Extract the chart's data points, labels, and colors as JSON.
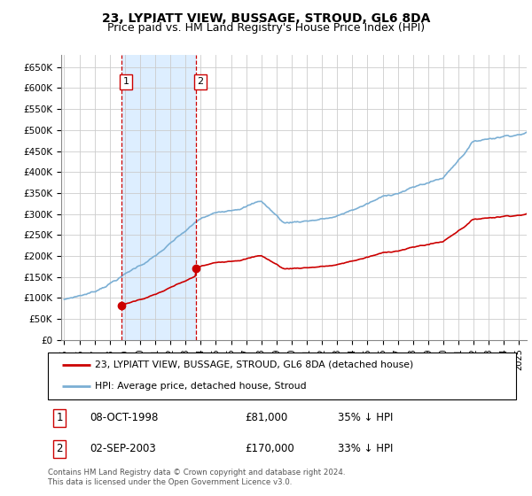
{
  "title": "23, LYPIATT VIEW, BUSSAGE, STROUD, GL6 8DA",
  "subtitle": "Price paid vs. HM Land Registry's House Price Index (HPI)",
  "title_fontsize": 10,
  "subtitle_fontsize": 9,
  "ylabel_ticks": [
    "£0",
    "£50K",
    "£100K",
    "£150K",
    "£200K",
    "£250K",
    "£300K",
    "£350K",
    "£400K",
    "£450K",
    "£500K",
    "£550K",
    "£600K",
    "£650K"
  ],
  "ytick_values": [
    0,
    50000,
    100000,
    150000,
    200000,
    250000,
    300000,
    350000,
    400000,
    450000,
    500000,
    550000,
    600000,
    650000
  ],
  "ylim": [
    0,
    680000
  ],
  "xlim_start": 1994.8,
  "xlim_end": 2025.5,
  "purchase1_date": 1998.77,
  "purchase1_price": 81000,
  "purchase1_label": "1",
  "purchase2_date": 2003.67,
  "purchase2_price": 170000,
  "purchase2_label": "2",
  "legend_line1": "23, LYPIATT VIEW, BUSSAGE, STROUD, GL6 8DA (detached house)",
  "legend_line2": "HPI: Average price, detached house, Stroud",
  "purchase1_col1": "08-OCT-1998",
  "purchase1_col2": "£81,000",
  "purchase1_col3": "35% ↓ HPI",
  "purchase2_col1": "02-SEP-2003",
  "purchase2_col2": "£170,000",
  "purchase2_col3": "33% ↓ HPI",
  "footer": "Contains HM Land Registry data © Crown copyright and database right 2024.\nThis data is licensed under the Open Government Licence v3.0.",
  "price_color": "#cc0000",
  "hpi_color": "#7bafd4",
  "shade_color": "#ddeeff",
  "grid_color": "#cccccc",
  "background_color": "#ffffff",
  "box_color": "#cc0000"
}
